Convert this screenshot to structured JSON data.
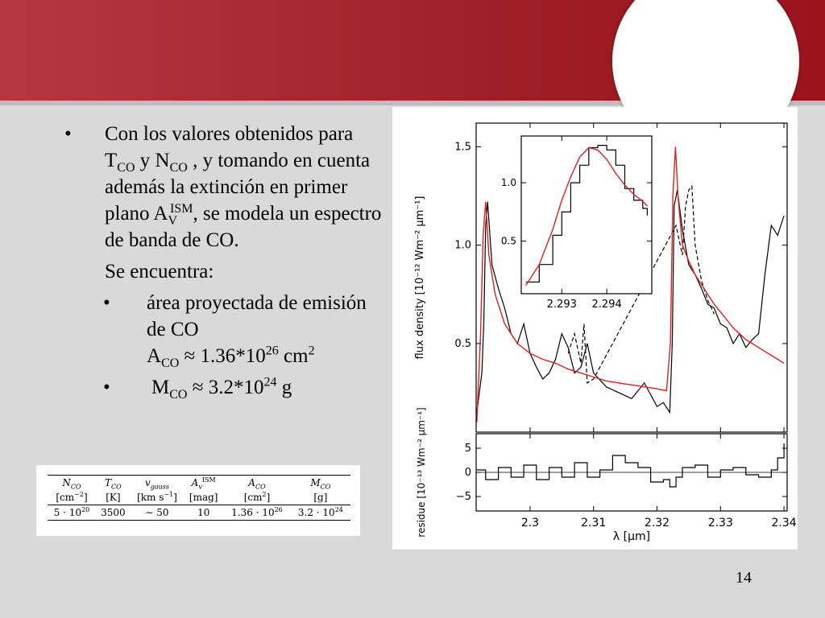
{
  "slide": {
    "bullet_char": "•",
    "b1": {
      "t1": "Con los valores obtenidos para T",
      "s1": "CO",
      "t2": " y N",
      "s2": "CO",
      "t3": " , y tomando en cuenta además la extinción en primer plano A",
      "s3": "V",
      "sup3": "ISM",
      "t4": ", se modela un espectro de banda de CO."
    },
    "se_encuentra": "Se encuentra:",
    "b2": {
      "t1": "área proyectada de emisión de CO",
      "t2": "A",
      "s1": "CO",
      "t3": " ≈ 1.36*10",
      "sup1": "26",
      "t4": " cm",
      "sup2": "2"
    },
    "b3": {
      "t1": "M",
      "s1": "CO",
      "t2": " ≈ 3.2*10",
      "sup1": "24",
      "t3": " g"
    },
    "page_number": "14"
  },
  "table": {
    "headers": [
      "N",
      "T",
      "v",
      "A",
      "A",
      "M"
    ],
    "header_subs": [
      "CO",
      "CO",
      "gauss",
      "v",
      "CO",
      "CO"
    ],
    "header_sup4": "ISM",
    "units": [
      "[cm",
      "[K]",
      "[km s",
      "[mag]",
      "[cm",
      "[g]"
    ],
    "unit_sups": [
      "−2",
      "",
      "−1",
      "",
      "2",
      ""
    ],
    "unit_close": [
      "]",
      "",
      "]",
      "",
      "]",
      ""
    ],
    "values": [
      "5 · 10",
      "3500",
      "∼ 50",
      "10",
      "1.36 · 10",
      "3.2 · 10"
    ],
    "value_sups": [
      "20",
      "",
      "",
      "",
      "26",
      "24"
    ]
  },
  "chart_data": [
    {
      "type": "line",
      "ylabel": "flux density [10⁻¹² Wm⁻² μm⁻¹]",
      "xlim": [
        2.2915,
        2.3405
      ],
      "ylim": [
        0.05,
        1.62
      ],
      "yticks": [
        "0.5",
        "1.0",
        "1.5"
      ],
      "ytick_values": [
        0.5,
        1.0,
        1.5
      ],
      "xticks": [
        2.3,
        2.31,
        2.32,
        2.33,
        2.34
      ],
      "series": [
        {
          "style": "black solid",
          "x": [
            2.2916,
            2.2924,
            2.2927,
            2.293,
            2.2933,
            2.294,
            2.295,
            2.296,
            2.297,
            2.298,
            2.299,
            2.3,
            2.301,
            2.302,
            2.303,
            2.304,
            2.305,
            2.306,
            2.307,
            2.308,
            2.309,
            2.31,
            2.312,
            2.314,
            2.316,
            2.318,
            2.32,
            2.321,
            2.322,
            2.3224,
            2.3227,
            2.3232,
            2.324,
            2.325,
            2.326,
            2.327,
            2.328,
            2.329,
            2.33,
            2.331,
            2.332,
            2.333,
            2.334,
            2.335,
            2.336,
            2.337,
            2.338,
            2.339,
            2.34
          ],
          "y": [
            0.15,
            0.35,
            0.6,
            1.1,
            1.22,
            0.9,
            0.78,
            0.68,
            0.55,
            0.5,
            0.6,
            0.45,
            0.38,
            0.32,
            0.35,
            0.42,
            0.55,
            0.48,
            0.35,
            0.38,
            0.5,
            0.35,
            0.28,
            0.25,
            0.22,
            0.3,
            0.18,
            0.2,
            0.15,
            0.5,
            1.2,
            1.28,
            1.08,
            0.9,
            0.85,
            0.78,
            0.7,
            0.68,
            0.6,
            0.58,
            0.5,
            0.55,
            0.48,
            0.52,
            0.55,
            0.85,
            1.1,
            1.05,
            1.15
          ]
        },
        {
          "style": "black dashed",
          "x": [
            2.306,
            2.307,
            2.308,
            2.3085,
            2.309,
            2.31,
            2.323,
            2.324,
            2.3245,
            2.325,
            2.3255,
            2.326,
            2.327,
            2.328,
            2.329
          ],
          "y": [
            0.45,
            0.55,
            0.4,
            0.6,
            0.3,
            0.32,
            1.1,
            0.95,
            1.2,
            1.28,
            1.3,
            1.0,
            0.82,
            0.72,
            0.65
          ]
        },
        {
          "style": "red model",
          "x": [
            2.2916,
            2.2922,
            2.2926,
            2.293,
            2.2935,
            2.2945,
            2.296,
            2.298,
            2.3,
            2.302,
            2.304,
            2.306,
            2.308,
            2.31,
            2.312,
            2.314,
            2.316,
            2.318,
            2.32,
            2.3215,
            2.3221,
            2.3225,
            2.3229,
            2.3233,
            2.324,
            2.325,
            2.326,
            2.327,
            2.328,
            2.329,
            2.33,
            2.331,
            2.332,
            2.333,
            2.334,
            2.335,
            2.336,
            2.337,
            2.338,
            2.339,
            2.34
          ],
          "y": [
            0.1,
            0.55,
            1.05,
            1.22,
            0.95,
            0.75,
            0.6,
            0.5,
            0.45,
            0.42,
            0.4,
            0.37,
            0.35,
            0.33,
            0.31,
            0.3,
            0.29,
            0.28,
            0.27,
            0.26,
            0.5,
            1.25,
            1.5,
            1.25,
            1.0,
            0.92,
            0.85,
            0.8,
            0.75,
            0.7,
            0.66,
            0.62,
            0.58,
            0.55,
            0.52,
            0.5,
            0.48,
            0.46,
            0.44,
            0.42,
            0.4
          ]
        }
      ]
    },
    {
      "type": "line",
      "inset": true,
      "xticks": [
        "2.293",
        "2.294"
      ],
      "xtick_values": [
        2.293,
        2.294
      ],
      "yticks": [
        "0.5",
        "1.0"
      ],
      "ytick_values": [
        0.5,
        1.0
      ],
      "xlim": [
        2.2921,
        2.295
      ],
      "ylim": [
        0.05,
        1.4
      ],
      "series": [
        {
          "style": "black step",
          "x": [
            2.2922,
            2.2925,
            2.2928,
            2.293,
            2.2932,
            2.2934,
            2.2936,
            2.2938,
            2.294,
            2.2942,
            2.2944,
            2.2946,
            2.2948,
            2.2949
          ],
          "y": [
            0.15,
            0.3,
            0.55,
            0.75,
            1.0,
            1.15,
            1.3,
            1.32,
            1.28,
            1.15,
            0.95,
            0.85,
            0.78,
            0.72
          ]
        },
        {
          "style": "red",
          "x": [
            2.2922,
            2.2925,
            2.2928,
            2.293,
            2.2932,
            2.2934,
            2.2936,
            2.2938,
            2.294,
            2.2942,
            2.2944,
            2.2946,
            2.2948,
            2.2949
          ],
          "y": [
            0.12,
            0.3,
            0.6,
            0.85,
            1.05,
            1.22,
            1.3,
            1.28,
            1.2,
            1.08,
            0.98,
            0.9,
            0.84,
            0.8
          ]
        }
      ]
    },
    {
      "type": "line",
      "ylabel": "residue [10⁻¹³ Wm⁻² μm⁻¹]",
      "xlabel": "λ [μm]",
      "xlim": [
        2.2915,
        2.3405
      ],
      "ylim": [
        -8,
        8
      ],
      "yticks": [
        "5",
        "0",
        "−5"
      ],
      "ytick_values": [
        5,
        0,
        -5
      ],
      "xticks": [
        "2.3",
        "2.31",
        "2.32",
        "2.33",
        "2.34"
      ],
      "xtick_values": [
        2.3,
        2.31,
        2.32,
        2.33,
        2.34
      ],
      "series": [
        {
          "style": "black step",
          "x": [
            2.2916,
            2.293,
            2.295,
            2.297,
            2.299,
            2.301,
            2.303,
            2.305,
            2.307,
            2.309,
            2.311,
            2.313,
            2.315,
            2.317,
            2.319,
            2.321,
            2.322,
            2.323,
            2.324,
            2.326,
            2.328,
            2.33,
            2.332,
            2.334,
            2.336,
            2.338,
            2.339,
            2.34
          ],
          "y": [
            0.5,
            -1.5,
            1,
            -1,
            1.5,
            -1.5,
            1,
            -1,
            2,
            -1,
            0.5,
            3.5,
            2,
            1,
            -2,
            -1.5,
            -3,
            -1,
            1,
            1.5,
            -1,
            0.5,
            1,
            -0.5,
            -1,
            0.5,
            3,
            6
          ]
        }
      ]
    }
  ]
}
